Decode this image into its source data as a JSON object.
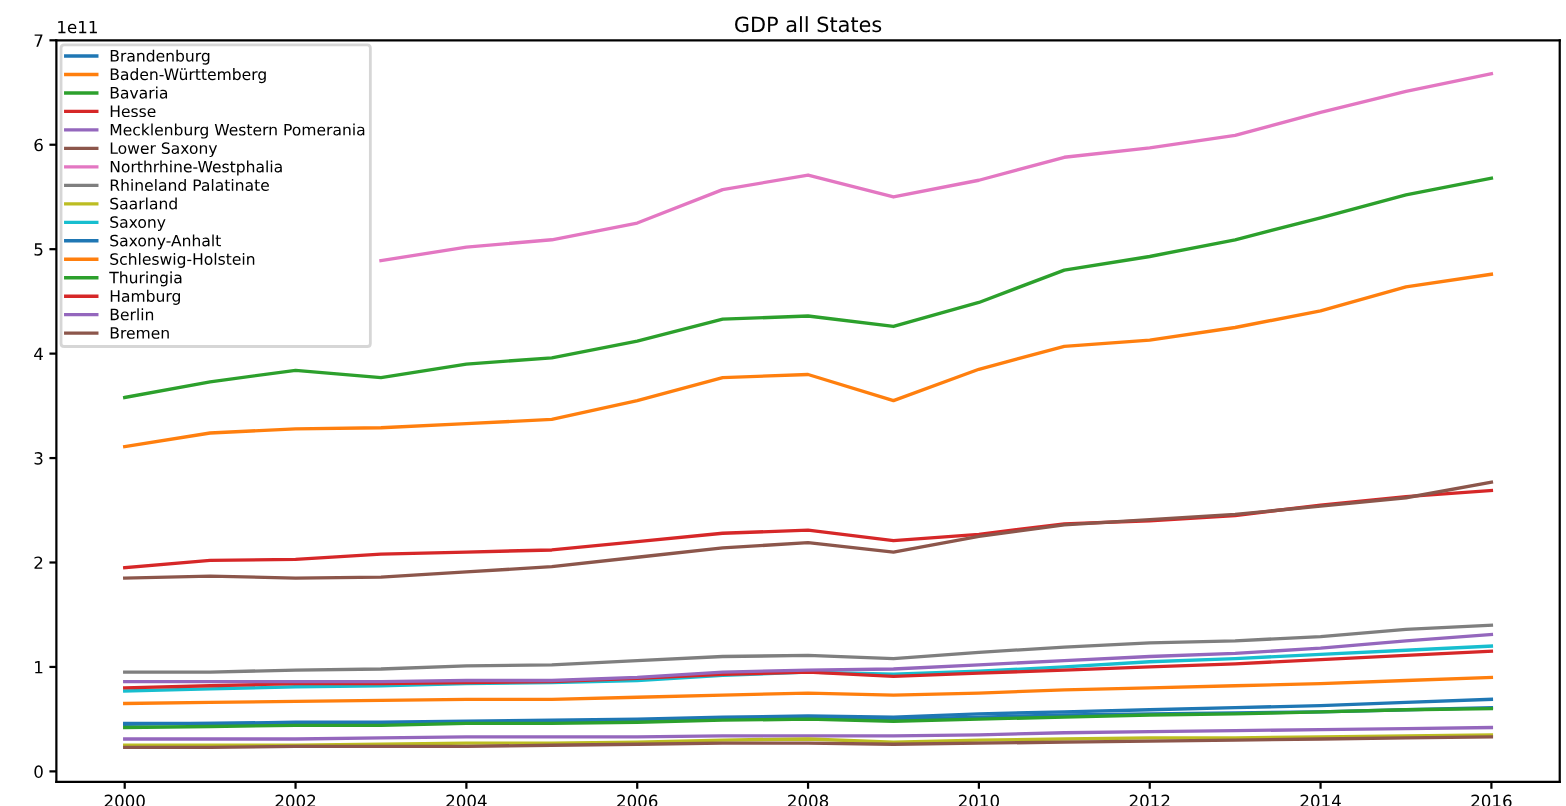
{
  "chart_data": {
    "type": "line",
    "title": "GDP all States",
    "annotations": [
      "1e11"
    ],
    "x": [
      2000,
      2001,
      2002,
      2003,
      2004,
      2005,
      2006,
      2007,
      2008,
      2009,
      2010,
      2011,
      2012,
      2013,
      2014,
      2015,
      2016
    ],
    "xlim": [
      1999.2,
      2016.8
    ],
    "xticks": [
      2000,
      2002,
      2004,
      2006,
      2008,
      2010,
      2012,
      2014,
      2016
    ],
    "ylim": [
      -0.1,
      7
    ],
    "yticks": [
      0,
      1,
      2,
      3,
      4,
      5,
      6,
      7
    ],
    "grid": false,
    "legend": "top left",
    "series": [
      {
        "name": "Brandenburg",
        "color": "#1f77b4",
        "values": [
          0.45,
          0.46,
          0.47,
          0.47,
          0.48,
          0.49,
          0.5,
          0.52,
          0.53,
          0.52,
          0.55,
          0.57,
          0.59,
          0.61,
          0.63,
          0.66,
          0.69
        ]
      },
      {
        "name": "Baden-Württemberg",
        "color": "#ff7f0e",
        "values": [
          3.11,
          3.24,
          3.28,
          3.29,
          3.33,
          3.37,
          3.55,
          3.77,
          3.8,
          3.55,
          3.85,
          4.07,
          4.13,
          4.25,
          4.41,
          4.64,
          4.76
        ]
      },
      {
        "name": "Bavaria",
        "color": "#2ca02c",
        "values": [
          3.58,
          3.73,
          3.84,
          3.77,
          3.9,
          3.96,
          4.12,
          4.33,
          4.36,
          4.26,
          4.49,
          4.8,
          4.93,
          5.09,
          5.3,
          5.52,
          5.68
        ]
      },
      {
        "name": "Hesse",
        "color": "#d62728",
        "values": [
          1.95,
          2.02,
          2.03,
          2.08,
          2.1,
          2.12,
          2.2,
          2.28,
          2.31,
          2.21,
          2.27,
          2.37,
          2.4,
          2.45,
          2.55,
          2.63,
          2.69
        ]
      },
      {
        "name": "Mecklenburg Western Pomerania",
        "color": "#9467bd",
        "values": [
          0.31,
          0.31,
          0.31,
          0.32,
          0.33,
          0.33,
          0.33,
          0.34,
          0.34,
          0.34,
          0.35,
          0.37,
          0.38,
          0.39,
          0.4,
          0.41,
          0.42
        ]
      },
      {
        "name": "Lower Saxony",
        "color": "#8c564b",
        "values": [
          1.85,
          1.87,
          1.85,
          1.86,
          1.91,
          1.96,
          2.05,
          2.14,
          2.19,
          2.1,
          2.25,
          2.36,
          2.41,
          2.46,
          2.54,
          2.62,
          2.77
        ]
      },
      {
        "name": "Northrhine-Westphalia",
        "color": "#e377c2",
        "values": [
          null,
          null,
          null,
          4.89,
          5.02,
          5.09,
          5.25,
          5.57,
          5.71,
          5.5,
          5.66,
          5.88,
          5.97,
          6.09,
          6.31,
          6.51,
          6.68
        ]
      },
      {
        "name": "Rhineland Palatinate",
        "color": "#7f7f7f",
        "values": [
          0.95,
          0.95,
          0.97,
          0.98,
          1.01,
          1.02,
          1.06,
          1.1,
          1.11,
          1.08,
          1.14,
          1.19,
          1.23,
          1.25,
          1.29,
          1.36,
          1.4
        ]
      },
      {
        "name": "Saarland",
        "color": "#bcbd22",
        "values": [
          0.25,
          0.25,
          0.25,
          0.26,
          0.27,
          0.27,
          0.28,
          0.3,
          0.31,
          0.28,
          0.3,
          0.31,
          0.32,
          0.32,
          0.33,
          0.34,
          0.35
        ]
      },
      {
        "name": "Saxony",
        "color": "#17becf",
        "values": [
          0.77,
          0.79,
          0.81,
          0.82,
          0.84,
          0.85,
          0.87,
          0.92,
          0.95,
          0.93,
          0.96,
          1.0,
          1.05,
          1.08,
          1.12,
          1.16,
          1.2
        ]
      },
      {
        "name": "Saxony-Anhalt",
        "color": "#1f77b4",
        "values": [
          0.46,
          0.46,
          0.46,
          0.46,
          0.47,
          0.48,
          0.49,
          0.51,
          0.52,
          0.5,
          0.52,
          0.54,
          0.55,
          0.56,
          0.57,
          0.59,
          0.61
        ]
      },
      {
        "name": "Schleswig-Holstein",
        "color": "#ff7f0e",
        "values": [
          0.65,
          0.66,
          0.67,
          0.68,
          0.69,
          0.69,
          0.71,
          0.73,
          0.75,
          0.73,
          0.75,
          0.78,
          0.8,
          0.82,
          0.84,
          0.87,
          0.9
        ]
      },
      {
        "name": "Thuringia",
        "color": "#2ca02c",
        "values": [
          0.42,
          0.43,
          0.44,
          0.44,
          0.46,
          0.46,
          0.47,
          0.49,
          0.5,
          0.48,
          0.5,
          0.52,
          0.54,
          0.55,
          0.57,
          0.59,
          0.6
        ]
      },
      {
        "name": "Hamburg",
        "color": "#d62728",
        "values": [
          0.8,
          0.82,
          0.84,
          0.84,
          0.85,
          0.86,
          0.89,
          0.93,
          0.95,
          0.91,
          0.94,
          0.97,
          1.0,
          1.03,
          1.07,
          1.11,
          1.15
        ]
      },
      {
        "name": "Berlin",
        "color": "#9467bd",
        "values": [
          0.86,
          0.86,
          0.86,
          0.86,
          0.87,
          0.87,
          0.9,
          0.95,
          0.97,
          0.98,
          1.02,
          1.06,
          1.1,
          1.13,
          1.18,
          1.25,
          1.31
        ]
      },
      {
        "name": "Bremen",
        "color": "#8c564b",
        "values": [
          0.23,
          0.23,
          0.24,
          0.24,
          0.24,
          0.25,
          0.26,
          0.27,
          0.27,
          0.26,
          0.27,
          0.28,
          0.29,
          0.3,
          0.31,
          0.32,
          0.33
        ]
      }
    ]
  }
}
